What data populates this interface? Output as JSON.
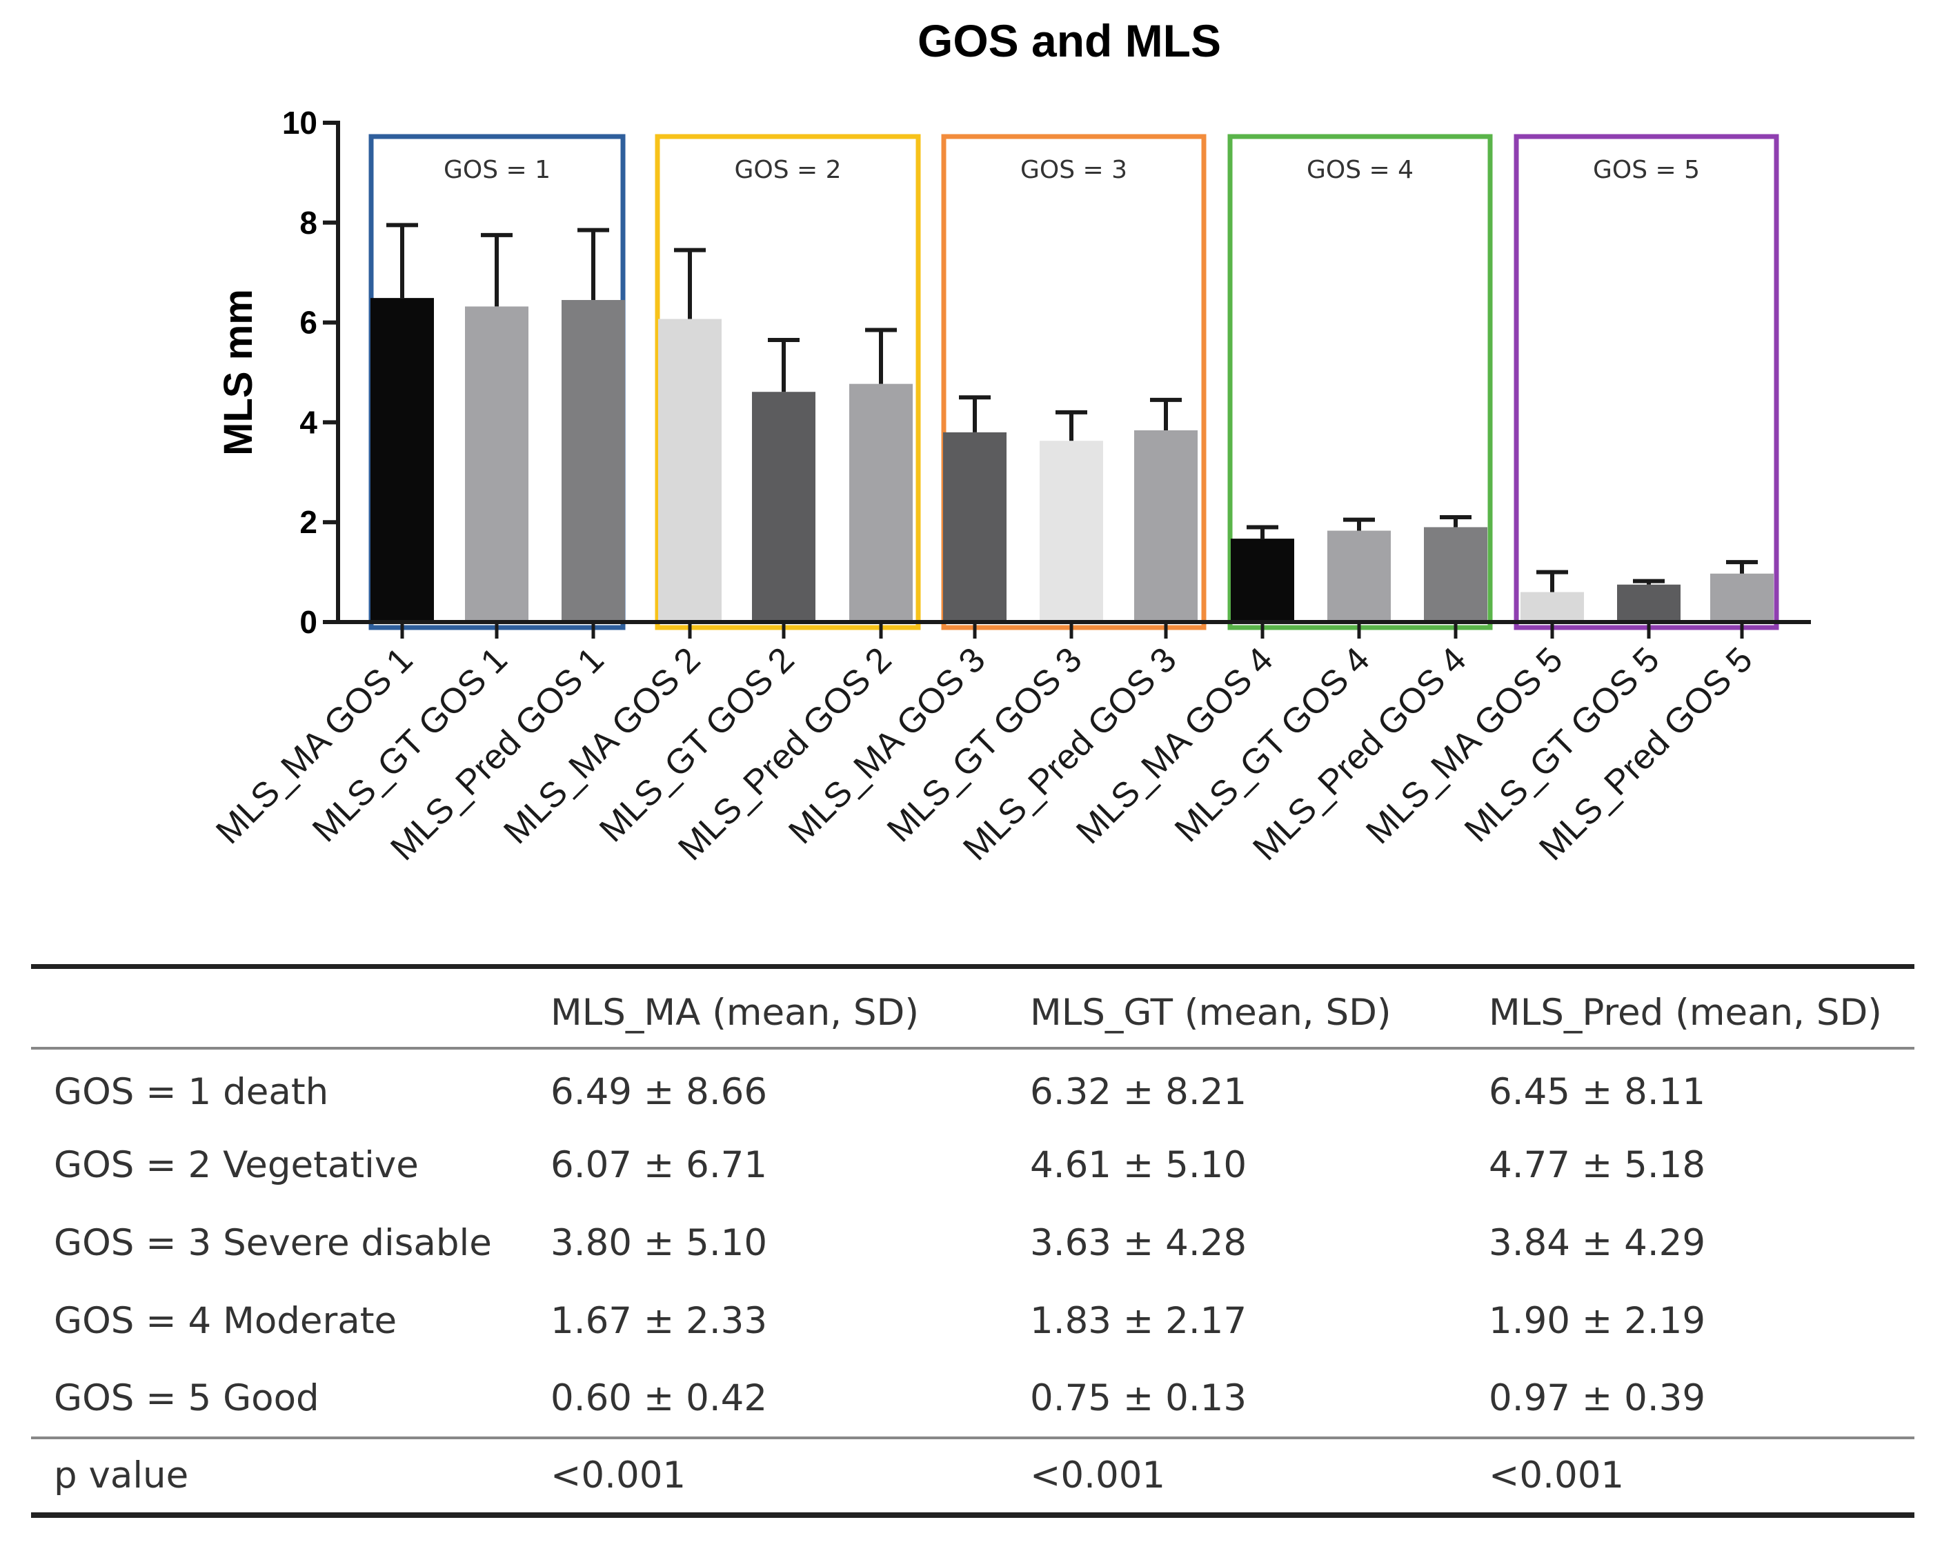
{
  "chart_data": {
    "type": "bar",
    "title": "GOS and MLS",
    "xlabel": "",
    "ylabel": "MLS mm",
    "ylim": [
      0,
      10
    ],
    "yticks": [
      "0",
      "2",
      "4",
      "6",
      "8",
      "10"
    ],
    "grid": false,
    "categories": [
      "MLS_MA GOS 1",
      "MLS_GT GOS 1",
      "MLS_Pred GOS 1",
      "MLS_MA GOS 2",
      "MLS_GT GOS 2",
      "MLS_Pred GOS 2",
      "MLS_MA GOS 3",
      "MLS_GT GOS 3",
      "MLS_Pred GOS 3",
      "MLS_MA GOS 4",
      "MLS_GT GOS 4",
      "MLS_Pred GOS 4",
      "MLS_MA GOS 5",
      "MLS_GT GOS 5",
      "MLS_Pred GOS 5"
    ],
    "values": [
      6.49,
      6.32,
      6.45,
      6.07,
      4.61,
      4.77,
      3.8,
      3.63,
      3.84,
      1.67,
      1.83,
      1.9,
      0.6,
      0.75,
      0.97
    ],
    "error_tops": [
      7.95,
      7.75,
      7.85,
      7.45,
      5.65,
      5.85,
      4.5,
      4.2,
      4.45,
      1.9,
      2.05,
      2.1,
      1.0,
      0.82,
      1.2
    ],
    "bar_colors": [
      "#0a0a0a",
      "#a3a3a6",
      "#7e7e80",
      "#d9d9d9",
      "#5c5c5e",
      "#a3a3a6",
      "#5c5c5e",
      "#e4e4e4",
      "#a3a3a6",
      "#0a0a0a",
      "#a3a3a6",
      "#7e7e80",
      "#d9d9d9",
      "#5c5c5e",
      "#a3a3a6"
    ],
    "groups": [
      {
        "label": "GOS = 1",
        "color": "#2f5f9c"
      },
      {
        "label": "GOS = 2",
        "color": "#f7c21a"
      },
      {
        "label": "GOS = 3",
        "color": "#f28c3c"
      },
      {
        "label": "GOS = 4",
        "color": "#5ab44a"
      },
      {
        "label": "GOS = 5",
        "color": "#8f3fb0"
      }
    ]
  },
  "table": {
    "headers": [
      "",
      "MLS_MA (mean, SD)",
      "MLS_GT (mean, SD)",
      "MLS_Pred (mean, SD)"
    ],
    "rows": [
      [
        "GOS = 1 death",
        "6.49 ± 8.66",
        "6.32 ± 8.21",
        "6.45 ± 8.11"
      ],
      [
        "GOS = 2 Vegetative",
        "6.07 ± 6.71",
        "4.61 ± 5.10",
        "4.77 ± 5.18"
      ],
      [
        "GOS = 3 Severe  disable",
        "3.80 ± 5.10",
        "3.63 ± 4.28",
        "3.84 ± 4.29"
      ],
      [
        "GOS = 4 Moderate",
        "1.67 ± 2.33",
        "1.83 ± 2.17",
        "1.90 ± 2.19"
      ],
      [
        "GOS = 5 Good",
        "0.60 ± 0.42",
        "0.75 ± 0.13",
        "0.97 ± 0.39"
      ]
    ],
    "footer": [
      "p value",
      "<0.001",
      "<0.001",
      "<0.001"
    ]
  }
}
